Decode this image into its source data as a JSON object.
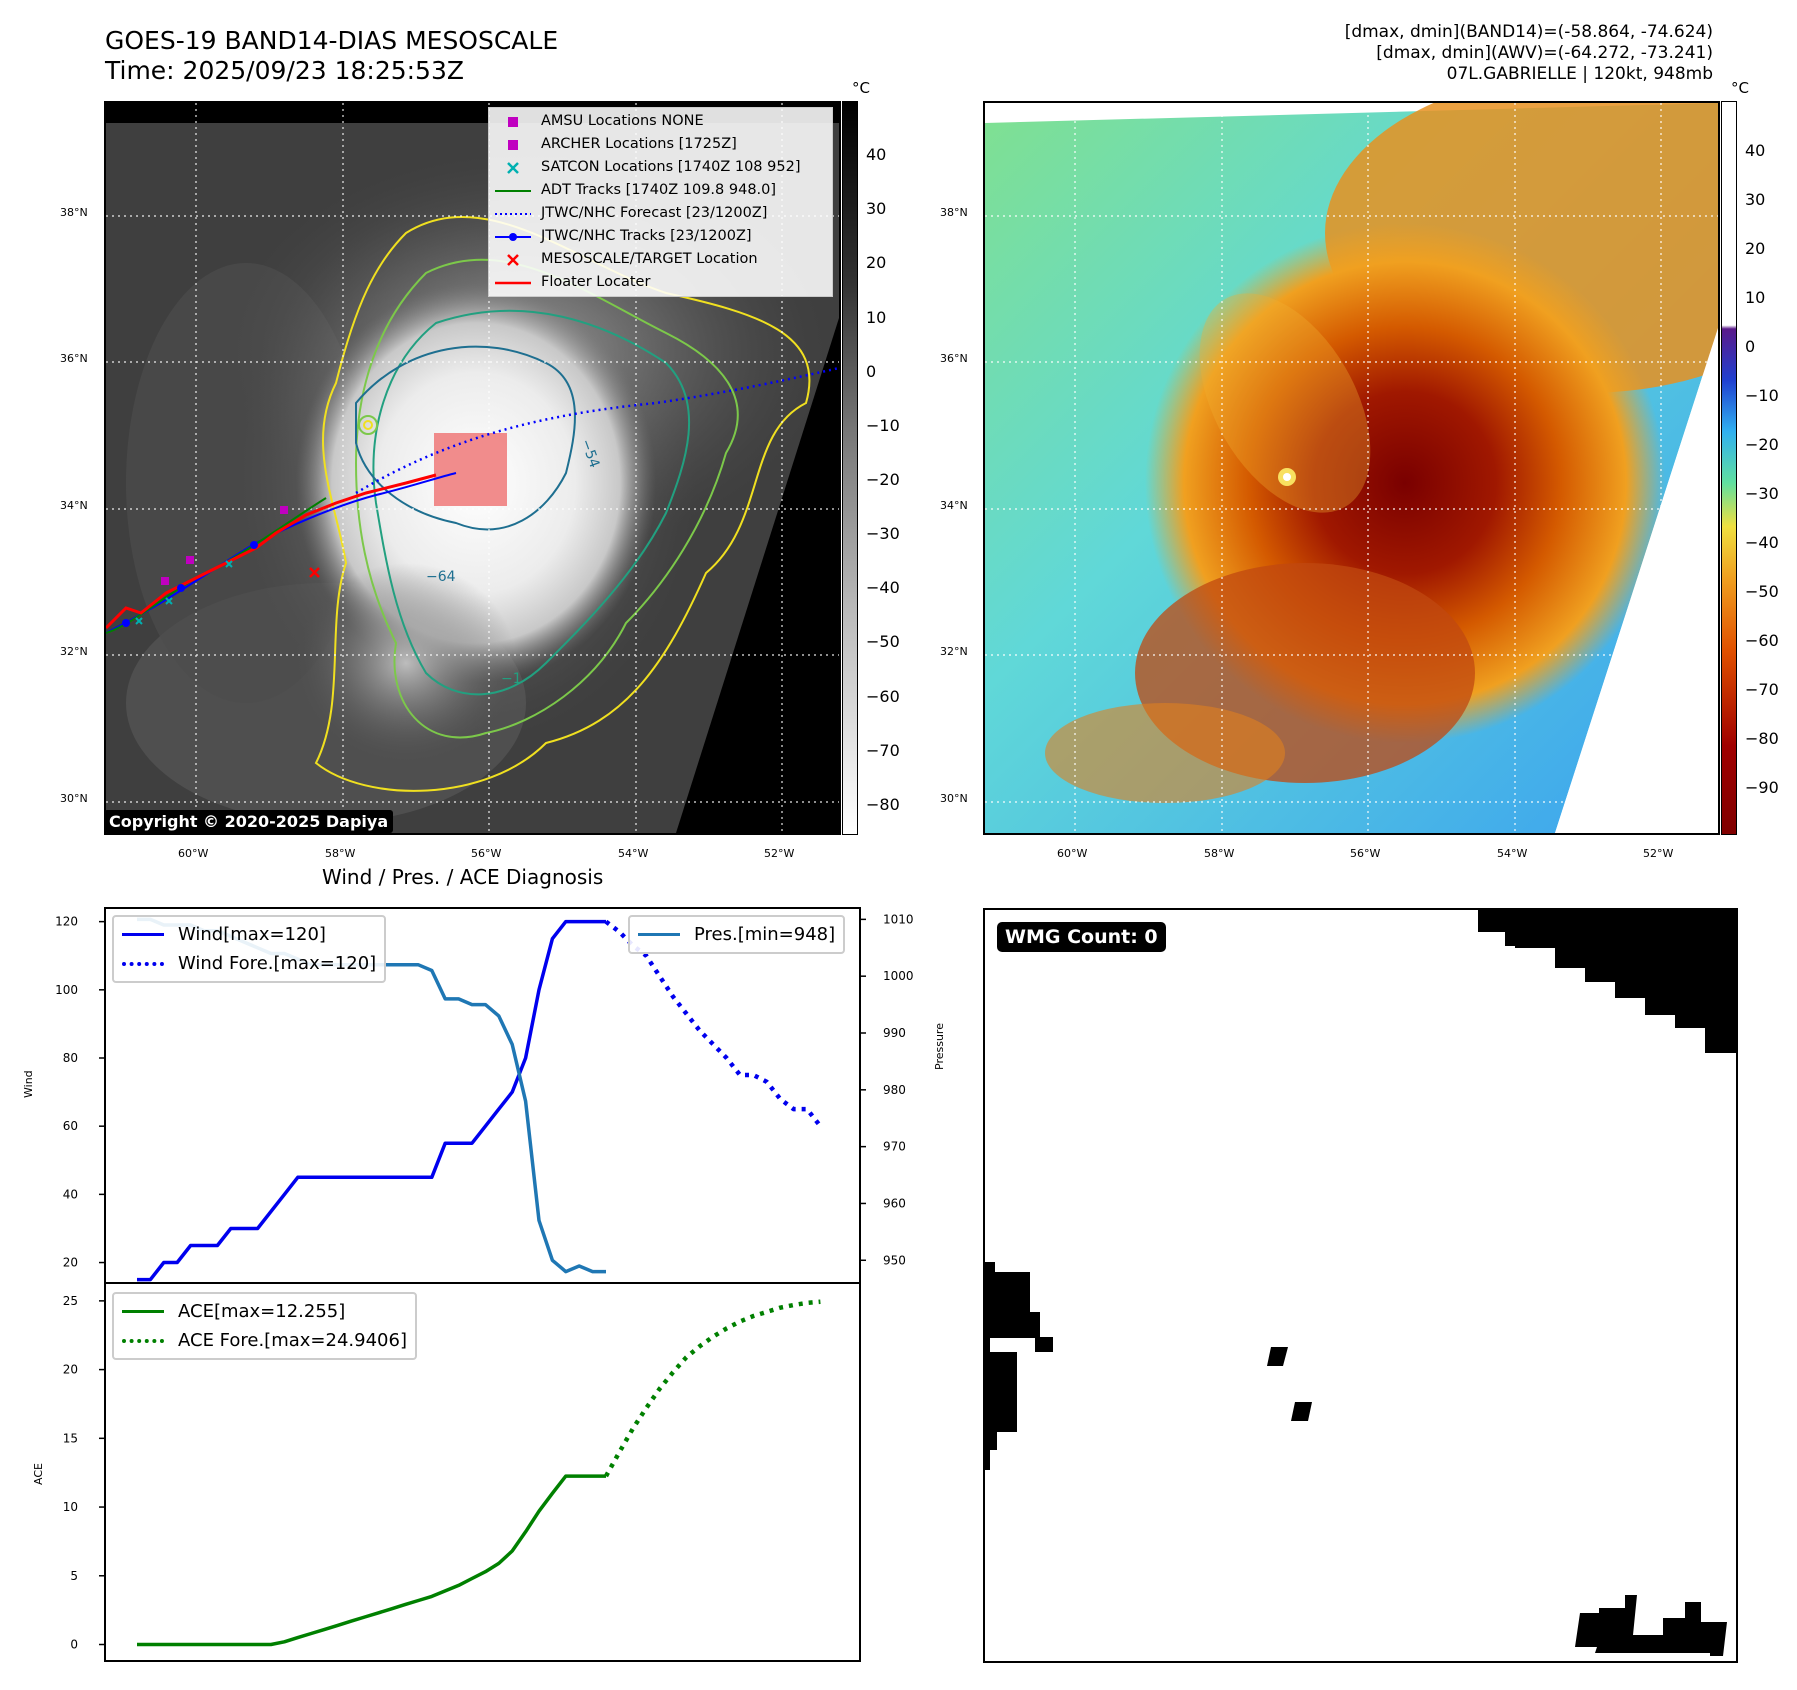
{
  "header": {
    "title_line1": "GOES-19 BAND14-DIAS MESOSCALE",
    "title_line2": "Time: 2025/09/23 18:25:53Z",
    "stats_line1": "[dmax, dmin](BAND14)=(-58.864, -74.624)",
    "stats_line2": "[dmax, dmin](AWV)=(-64.272, -73.241)",
    "stats_line3": "07L.GABRIELLE | 120kt, 948mb"
  },
  "map_axes": {
    "lon_ticks": [
      "60°W",
      "58°W",
      "56°W",
      "54°W",
      "52°W"
    ],
    "lat_ticks": [
      "38°N",
      "36°N",
      "34°N",
      "32°N",
      "30°N"
    ]
  },
  "ir_panel": {
    "colorbar_unit": "°C",
    "colorbar_ticks": [
      "40",
      "30",
      "20",
      "10",
      "0",
      "−10",
      "−20",
      "−30",
      "−40",
      "−50",
      "−60",
      "−70",
      "−80"
    ],
    "copyright": "Copyright © 2020-2025 Dapiya",
    "contour_labels": [
      "−54",
      "−64",
      "−54",
      "−1"
    ],
    "legend": [
      {
        "label": "AMSU Locations NONE",
        "icon": "magenta-square",
        "color": "#c000c0"
      },
      {
        "label": "ARCHER Locations [1725Z]",
        "icon": "magenta-square",
        "color": "#c000c0"
      },
      {
        "label": "SATCON Locations [1740Z 108 952]",
        "icon": "cyan-x",
        "color": "#00b0b0"
      },
      {
        "label": "ADT Tracks [1740Z 109.8 948.0]",
        "icon": "green-line",
        "color": "#008000"
      },
      {
        "label": "JTWC/NHC Forecast [23/1200Z]",
        "icon": "blue-dotted-line",
        "color": "#0000ff"
      },
      {
        "label": "JTWC/NHC Tracks [23/1200Z]",
        "icon": "blue-line-dot",
        "color": "#0000ff"
      },
      {
        "label": "MESOSCALE/TARGET Location",
        "icon": "red-x",
        "color": "#ff0000"
      },
      {
        "label": "Floater Locater",
        "icon": "red-line",
        "color": "#ff0000"
      }
    ]
  },
  "awv_panel": {
    "colorbar_unit": "°C",
    "colorbar_ticks": [
      "40",
      "30",
      "20",
      "10",
      "0",
      "−10",
      "−20",
      "−30",
      "−40",
      "−50",
      "−60",
      "−70",
      "−80",
      "−90"
    ]
  },
  "diagnosis": {
    "title": "Wind / Pres. / ACE Diagnosis",
    "wind_ylabel": "Wind",
    "pres_ylabel": "Pressure",
    "ace_ylabel": "ACE",
    "wind_ticks": [
      "120",
      "100",
      "80",
      "60",
      "40",
      "20"
    ],
    "pres_ticks": [
      "1010",
      "1000",
      "990",
      "980",
      "970",
      "960",
      "950"
    ],
    "ace_ticks": [
      "25",
      "20",
      "15",
      "10",
      "5",
      "0"
    ],
    "legend_wind": "Wind[max=120]",
    "legend_wind_fore": "Wind Fore.[max=120]",
    "legend_pres": "Pres.[min=948]",
    "legend_ace": "ACE[max=12.255]",
    "legend_ace_fore": "ACE Fore.[max=24.9406]"
  },
  "wmg_panel": {
    "label": "WMG Count: 0"
  },
  "chart_data": [
    {
      "type": "line",
      "title": "Wind / Pres. / ACE Diagnosis",
      "ylabel": "Wind",
      "ylim": [
        14,
        124
      ],
      "series": [
        {
          "name": "Wind[max=120]",
          "color": "#0000ee",
          "style": "solid",
          "x": [
            0,
            1,
            2,
            3,
            4,
            5,
            6,
            7,
            8,
            9,
            10,
            11,
            12,
            13,
            14,
            15,
            16,
            17,
            18,
            19,
            20,
            21,
            22,
            23,
            24,
            25,
            26,
            27,
            28,
            29,
            30,
            31,
            32,
            33,
            34,
            35
          ],
          "values": [
            15,
            15,
            20,
            20,
            25,
            25,
            25,
            30,
            30,
            30,
            35,
            40,
            45,
            45,
            45,
            45,
            45,
            45,
            45,
            45,
            45,
            45,
            45,
            55,
            55,
            55,
            60,
            65,
            70,
            80,
            100,
            115,
            120,
            120,
            120,
            120
          ]
        },
        {
          "name": "Wind Fore.[max=120]",
          "color": "#0000ee",
          "style": "dotted",
          "x": [
            35,
            36,
            37,
            38,
            39,
            40,
            41,
            42,
            43,
            44,
            45,
            46,
            47,
            48,
            49,
            50,
            51
          ],
          "values": [
            120,
            117,
            113,
            110,
            104,
            98,
            93,
            88,
            84,
            80,
            75,
            75,
            73,
            68,
            65,
            65,
            60
          ]
        }
      ]
    },
    {
      "type": "line",
      "ylabel": "Pressure",
      "ylim": [
        946,
        1012
      ],
      "series": [
        {
          "name": "Pres.[min=948]",
          "color": "#1f77b4",
          "style": "solid",
          "x": [
            0,
            1,
            2,
            3,
            4,
            5,
            6,
            7,
            8,
            9,
            10,
            11,
            12,
            13,
            14,
            15,
            16,
            17,
            18,
            19,
            20,
            21,
            22,
            23,
            24,
            25,
            26,
            27,
            28,
            29,
            30,
            31,
            32,
            33,
            34,
            35
          ],
          "values": [
            1010,
            1010,
            1009,
            1009,
            1009,
            1008,
            1008,
            1007,
            1006,
            1005,
            1004,
            1004,
            1003,
            1002,
            1002,
            1002,
            1002,
            1002,
            1002,
            1002,
            1002,
            1002,
            1001,
            996,
            996,
            995,
            995,
            993,
            988,
            978,
            957,
            950,
            948,
            949,
            948,
            948
          ]
        }
      ]
    },
    {
      "type": "line",
      "ylabel": "ACE",
      "ylim": [
        -1.2,
        26.3
      ],
      "series": [
        {
          "name": "ACE[max=12.255]",
          "color": "#008000",
          "style": "solid",
          "x": [
            0,
            1,
            2,
            3,
            4,
            5,
            6,
            7,
            8,
            9,
            10,
            11,
            12,
            13,
            14,
            15,
            16,
            17,
            18,
            19,
            20,
            21,
            22,
            23,
            24,
            25,
            26,
            27,
            28,
            29,
            30,
            31,
            32,
            33,
            34,
            35
          ],
          "values": [
            0,
            0,
            0,
            0,
            0,
            0,
            0,
            0,
            0,
            0,
            0,
            0.2,
            0.5,
            0.8,
            1.1,
            1.4,
            1.7,
            2.0,
            2.3,
            2.6,
            2.9,
            3.2,
            3.5,
            3.9,
            4.3,
            4.8,
            5.3,
            5.9,
            6.8,
            8.2,
            9.7,
            11.0,
            12.255,
            12.255,
            12.255,
            12.255
          ]
        },
        {
          "name": "ACE Fore.[max=24.9406]",
          "color": "#008000",
          "style": "dotted",
          "x": [
            35,
            36,
            37,
            38,
            39,
            40,
            41,
            42,
            43,
            44,
            45,
            46,
            47,
            48,
            49,
            50,
            51
          ],
          "values": [
            12.255,
            14.0,
            15.7,
            17.2,
            18.6,
            19.8,
            20.9,
            21.7,
            22.4,
            23.0,
            23.5,
            23.9,
            24.2,
            24.5,
            24.7,
            24.85,
            24.94
          ]
        }
      ]
    }
  ]
}
